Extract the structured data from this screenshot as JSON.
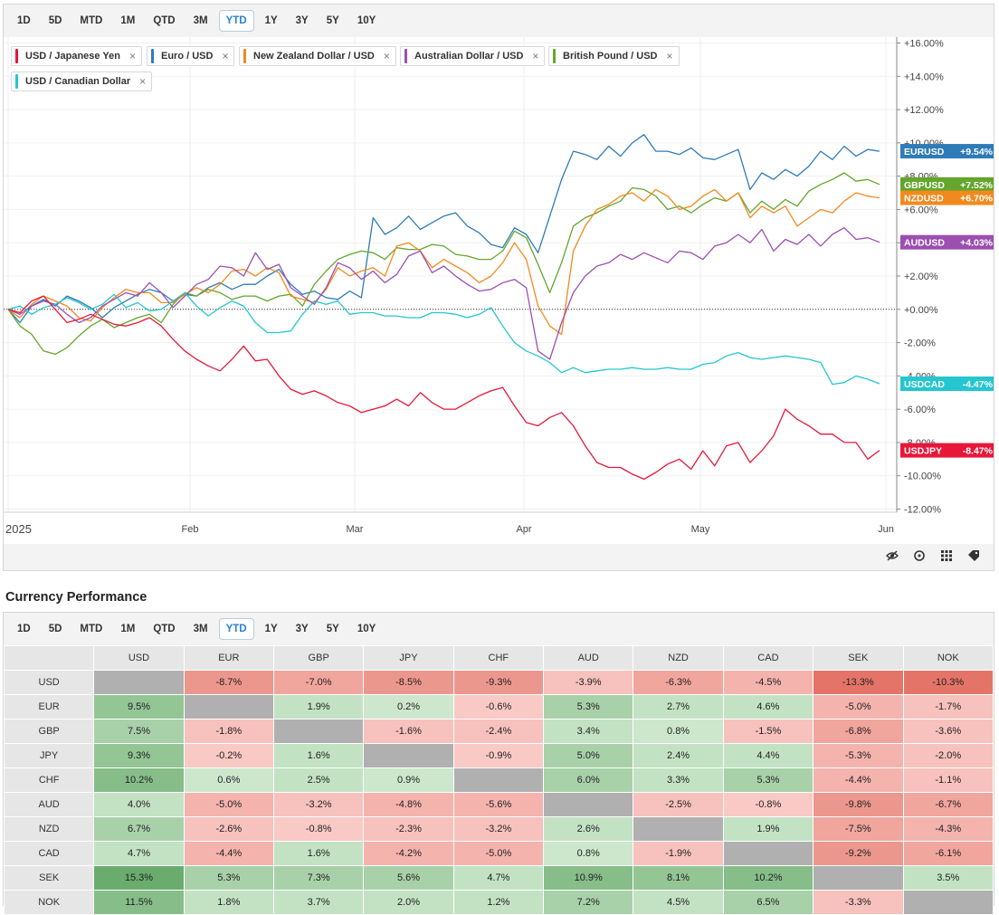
{
  "timeframes": [
    "1D",
    "5D",
    "MTD",
    "1M",
    "QTD",
    "3M",
    "YTD",
    "1Y",
    "3Y",
    "5Y",
    "10Y"
  ],
  "active_timeframe": "YTD",
  "legend": [
    {
      "label": "USD / Japanese Yen",
      "color": "#e8173a"
    },
    {
      "label": "Euro / USD",
      "color": "#2f7bb8"
    },
    {
      "label": "New Zealand Dollar / USD",
      "color": "#f08a1f"
    },
    {
      "label": "Australian Dollar / USD",
      "color": "#9c4fb0"
    },
    {
      "label": "British Pound / USD",
      "color": "#63a62b"
    },
    {
      "label": "USD / Canadian Dollar",
      "color": "#25c6cf"
    }
  ],
  "chart_data": {
    "type": "line",
    "title": "",
    "x_ticks": [
      "2025",
      "Feb",
      "Mar",
      "Apr",
      "May",
      "Jun"
    ],
    "y_ticks": [
      "+16.00%",
      "+14.00%",
      "+12.00%",
      "+10.00%",
      "+8.00%",
      "+6.00%",
      "+4.00%",
      "+2.00%",
      "+0.00%",
      "-2.00%",
      "-4.00%",
      "-6.00%",
      "-8.00%",
      "-10.00%",
      "-12.00%"
    ],
    "ylim": [
      -12,
      16
    ],
    "series": [
      {
        "name": "EURUSD",
        "tag": "+9.54%",
        "color": "#2f7bb8",
        "values": [
          0,
          -0.8,
          0.2,
          0.6,
          0.2,
          0.8,
          0.5,
          0.1,
          -0.5,
          0.1,
          0.5,
          0.9,
          1.2,
          1.0,
          0.5,
          0.9,
          0.8,
          1.3,
          1.6,
          1.2,
          1.5,
          1.5,
          2.0,
          2.4,
          1.5,
          0.9,
          1.1,
          0.7,
          0.6,
          1.1,
          0.7,
          5.5,
          4.5,
          4.9,
          5.6,
          4.8,
          5.2,
          5.6,
          5.8,
          5.0,
          4.6,
          3.9,
          3.7,
          4.9,
          4.5,
          3.4,
          5.6,
          7.8,
          9.5,
          9.3,
          9.0,
          9.8,
          9.2,
          10.0,
          10.5,
          9.5,
          9.5,
          9.3,
          9.7,
          9.1,
          9.0,
          9.3,
          9.6,
          7.2,
          8.2,
          7.8,
          8.4,
          8.0,
          8.6,
          9.5,
          9.0,
          9.8,
          9.2,
          9.6,
          9.5
        ]
      },
      {
        "name": "GBPUSD",
        "tag": "+7.52%",
        "color": "#63a62b",
        "values": [
          0,
          -1.0,
          -1.5,
          -2.5,
          -2.7,
          -2.3,
          -1.6,
          -1.0,
          -0.6,
          -1.1,
          -0.8,
          -0.5,
          -0.3,
          -0.8,
          0.3,
          1.0,
          0.8,
          1.2,
          1.0,
          0.6,
          0.8,
          0.8,
          0.5,
          0.8,
          0.9,
          0.2,
          1.5,
          2.3,
          3.0,
          3.3,
          3.5,
          3.4,
          3.0,
          3.7,
          3.6,
          3.6,
          3.9,
          3.8,
          3.3,
          3.2,
          3.0,
          3.0,
          3.5,
          4.7,
          4.3,
          2.7,
          1.0,
          2.8,
          5.0,
          5.5,
          5.8,
          6.2,
          6.5,
          7.3,
          7.2,
          6.8,
          6.0,
          6.2,
          5.8,
          6.3,
          6.7,
          6.5,
          7.0,
          5.8,
          6.5,
          6.0,
          6.6,
          6.2,
          7.1,
          7.5,
          7.8,
          8.2,
          7.7,
          7.8,
          7.5
        ]
      },
      {
        "name": "NZDUSD",
        "tag": "+6.70%",
        "color": "#f08a1f",
        "values": [
          0,
          -0.5,
          0.3,
          0.8,
          0.5,
          0.2,
          -0.5,
          -0.7,
          0.1,
          0.7,
          1.2,
          1.0,
          1.0,
          0.4,
          0.4,
          0.9,
          1.3,
          1.0,
          1.5,
          2.3,
          2.4,
          2.0,
          2.5,
          2.2,
          0.8,
          0.6,
          0.4,
          1.2,
          2.5,
          2.0,
          2.3,
          2.5,
          2.0,
          3.8,
          4.0,
          3.5,
          2.5,
          3.0,
          2.6,
          2.2,
          1.6,
          2.0,
          2.8,
          4.0,
          3.0,
          0.2,
          -1.0,
          -1.5,
          3.5,
          5.0,
          6.0,
          6.3,
          6.8,
          7.0,
          6.5,
          7.2,
          6.8,
          6.0,
          6.2,
          6.8,
          7.2,
          6.5,
          7.0,
          5.5,
          6.2,
          5.8,
          6.2,
          5.0,
          5.5,
          6.0,
          5.8,
          6.5,
          7.0,
          6.8,
          6.7
        ]
      },
      {
        "name": "AUDUSD",
        "tag": "+4.03%",
        "color": "#9c4fb0",
        "values": [
          0,
          -0.3,
          0.2,
          0.5,
          0.3,
          -0.3,
          -0.8,
          -0.5,
          0.2,
          0.6,
          1.0,
          0.8,
          1.6,
          1.0,
          0.1,
          0.8,
          1.5,
          1.8,
          2.6,
          2.5,
          2.0,
          3.4,
          2.4,
          2.7,
          1.3,
          0.8,
          0.3,
          1.3,
          2.8,
          2.5,
          1.8,
          2.3,
          1.6,
          2.1,
          3.2,
          3.5,
          2.2,
          2.6,
          2.0,
          1.5,
          1.1,
          1.2,
          1.6,
          1.8,
          1.3,
          -2.5,
          -3.0,
          -0.8,
          1.0,
          2.0,
          2.6,
          2.8,
          3.3,
          3.0,
          3.4,
          3.1,
          2.8,
          3.5,
          3.4,
          3.0,
          3.8,
          4.0,
          4.5,
          4.0,
          4.8,
          3.5,
          4.2,
          3.9,
          4.5,
          3.8,
          4.5,
          4.9,
          4.2,
          4.3,
          4.03
        ]
      },
      {
        "name": "USDCAD",
        "tag": "-4.47%",
        "color": "#25c6cf",
        "values": [
          0,
          0.2,
          -0.3,
          0.1,
          0.3,
          0.7,
          0.4,
          0.0,
          0.3,
          0.9,
          0.1,
          0.4,
          -0.1,
          0.0,
          0.5,
          1.0,
          0.2,
          -0.4,
          0.1,
          0.5,
          0.2,
          -0.8,
          -1.4,
          -1.4,
          -1.3,
          -0.3,
          0.5,
          0.3,
          0.5,
          -0.3,
          -0.2,
          -0.2,
          -0.4,
          -0.4,
          -0.5,
          -0.5,
          -0.2,
          -0.2,
          -0.3,
          -0.5,
          -0.3,
          0.1,
          -1.0,
          -2.0,
          -2.5,
          -2.8,
          -3.2,
          -3.8,
          -3.5,
          -3.8,
          -3.7,
          -3.6,
          -3.6,
          -3.5,
          -3.6,
          -3.6,
          -3.5,
          -3.6,
          -3.6,
          -3.3,
          -3.2,
          -2.8,
          -2.6,
          -2.9,
          -3.0,
          -2.9,
          -2.8,
          -2.9,
          -3.0,
          -3.2,
          -4.5,
          -4.4,
          -4.0,
          -4.2,
          -4.47
        ]
      },
      {
        "name": "USDJPY",
        "tag": "-8.47%",
        "color": "#e8173a",
        "values": [
          0,
          -0.2,
          0.5,
          0.8,
          0.0,
          -0.8,
          -0.6,
          -0.3,
          -0.6,
          -0.9,
          -1.0,
          -0.8,
          -0.5,
          -1.0,
          -1.8,
          -2.5,
          -3.0,
          -3.4,
          -3.7,
          -3.0,
          -2.2,
          -3.1,
          -3.0,
          -4.0,
          -4.8,
          -5.1,
          -4.9,
          -5.2,
          -5.6,
          -5.8,
          -6.2,
          -6.0,
          -5.8,
          -5.4,
          -5.8,
          -5.0,
          -5.6,
          -6.0,
          -6.0,
          -5.6,
          -5.2,
          -4.9,
          -4.7,
          -5.8,
          -6.8,
          -7.0,
          -6.5,
          -6.2,
          -7.0,
          -8.2,
          -9.2,
          -9.5,
          -9.5,
          -9.9,
          -10.2,
          -9.8,
          -9.3,
          -9.0,
          -9.6,
          -8.5,
          -9.4,
          -8.2,
          -8.0,
          -9.2,
          -8.5,
          -7.6,
          -6.0,
          -6.6,
          -7.0,
          -7.5,
          -7.5,
          -8.0,
          -8.0,
          -9.0,
          -8.47
        ]
      }
    ]
  },
  "performance": {
    "title": "Currency Performance",
    "columns": [
      "USD",
      "EUR",
      "GBP",
      "JPY",
      "CHF",
      "AUD",
      "NZD",
      "CAD",
      "SEK",
      "NOK"
    ],
    "rows": [
      {
        "label": "USD",
        "cells": [
          "",
          "-8.7%",
          "-7.0%",
          "-8.5%",
          "-9.3%",
          "-3.9%",
          "-6.3%",
          "-4.5%",
          "-13.3%",
          "-10.3%"
        ]
      },
      {
        "label": "EUR",
        "cells": [
          "9.5%",
          "",
          "1.9%",
          "0.2%",
          "-0.6%",
          "5.3%",
          "2.7%",
          "4.6%",
          "-5.0%",
          "-1.7%"
        ]
      },
      {
        "label": "GBP",
        "cells": [
          "7.5%",
          "-1.8%",
          "",
          "-1.6%",
          "-2.4%",
          "3.4%",
          "0.8%",
          "-1.5%",
          "-6.8%",
          "-3.6%"
        ]
      },
      {
        "label": "JPY",
        "cells": [
          "9.3%",
          "-0.2%",
          "1.6%",
          "",
          "-0.9%",
          "5.0%",
          "2.4%",
          "4.4%",
          "-5.3%",
          "-2.0%"
        ]
      },
      {
        "label": "CHF",
        "cells": [
          "10.2%",
          "0.6%",
          "2.5%",
          "0.9%",
          "",
          "6.0%",
          "3.3%",
          "5.3%",
          "-4.4%",
          "-1.1%"
        ]
      },
      {
        "label": "AUD",
        "cells": [
          "4.0%",
          "-5.0%",
          "-3.2%",
          "-4.8%",
          "-5.6%",
          "",
          "-2.5%",
          "-0.8%",
          "-9.8%",
          "-6.7%"
        ]
      },
      {
        "label": "NZD",
        "cells": [
          "6.7%",
          "-2.6%",
          "-0.8%",
          "-2.3%",
          "-3.2%",
          "2.6%",
          "",
          "1.9%",
          "-7.5%",
          "-4.3%"
        ]
      },
      {
        "label": "CAD",
        "cells": [
          "4.7%",
          "-4.4%",
          "1.6%",
          "-4.2%",
          "-5.0%",
          "0.8%",
          "-1.9%",
          "",
          "-9.2%",
          "-6.1%"
        ]
      },
      {
        "label": "SEK",
        "cells": [
          "15.3%",
          "5.3%",
          "7.3%",
          "5.6%",
          "4.7%",
          "10.9%",
          "8.1%",
          "10.2%",
          "",
          "3.5%"
        ]
      },
      {
        "label": "NOK",
        "cells": [
          "11.5%",
          "1.8%",
          "3.7%",
          "2.0%",
          "1.2%",
          "7.2%",
          "4.5%",
          "6.5%",
          "-3.3%",
          ""
        ]
      }
    ]
  }
}
